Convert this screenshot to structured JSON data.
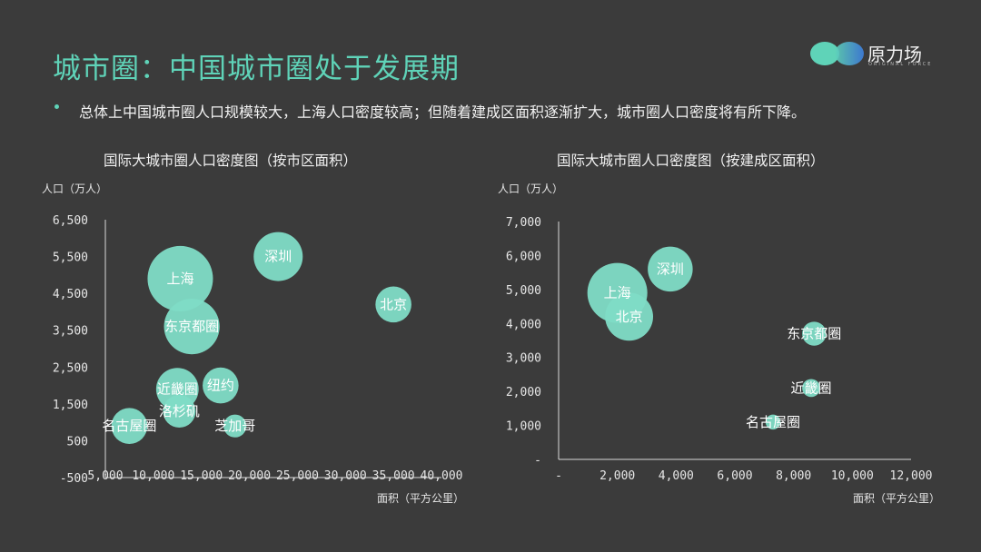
{
  "header": {
    "title": "城市圈：中国城市圈处于发展期",
    "logo_text": "原力场",
    "logo_sub": "ORIGINAL FORCE"
  },
  "bullet": "总体上中国城市圈人口规模较大，上海人口密度较高；但随着建成区面积逐渐扩大，城市圈人口密度将有所下降。",
  "colors": {
    "accent": "#5fd3b8",
    "bubble": "#80dcc6",
    "background": "#3b3b3b",
    "axis": "#d9d9d9"
  },
  "chart_data": [
    {
      "type": "bubble",
      "title": "国际大城市圈人口密度图（按市区面积）",
      "ylabel": "人口（万人）",
      "xlabel": "面积（平方公里）",
      "xlim": [
        5000,
        40000
      ],
      "ylim": [
        -500,
        6500
      ],
      "xticks": [
        "5,000",
        "10,000",
        "15,000",
        "20,000",
        "25,000",
        "30,000",
        "35,000",
        "40,000"
      ],
      "yticks": [
        "-500",
        "500",
        "1,500",
        "2,500",
        "3,500",
        "4,500",
        "5,500",
        "6,500"
      ],
      "points": [
        {
          "name": "上海",
          "x": 12800,
          "y": 4900,
          "size": 1.0
        },
        {
          "name": "深圳",
          "x": 23000,
          "y": 5500,
          "size": 0.75
        },
        {
          "name": "北京",
          "x": 35000,
          "y": 4200,
          "size": 0.55
        },
        {
          "name": "东京都圈",
          "x": 14000,
          "y": 3600,
          "size": 0.85
        },
        {
          "name": "纽约",
          "x": 17000,
          "y": 2000,
          "size": 0.55
        },
        {
          "name": "近畿圈",
          "x": 12500,
          "y": 1900,
          "size": 0.65
        },
        {
          "name": "洛杉矶",
          "x": 12700,
          "y": 1300,
          "size": 0.5
        },
        {
          "name": "名古屋圈",
          "x": 7500,
          "y": 900,
          "size": 0.55
        },
        {
          "name": "芝加哥",
          "x": 18500,
          "y": 900,
          "size": 0.35
        }
      ]
    },
    {
      "type": "bubble",
      "title": "国际大城市圈人口密度图（按建成区面积）",
      "ylabel": "人口（万人）",
      "xlabel": "面积（平方公里）",
      "xlim": [
        0,
        12000
      ],
      "ylim": [
        0,
        7000
      ],
      "xticks": [
        "-",
        "2,000",
        "4,000",
        "6,000",
        "8,000",
        "10,000",
        "12,000"
      ],
      "yticks": [
        "-",
        "1,000",
        "2,000",
        "3,000",
        "4,000",
        "5,000",
        "6,000",
        "7,000"
      ],
      "points": [
        {
          "name": "上海",
          "x": 2000,
          "y": 4900,
          "size": 1.0
        },
        {
          "name": "北京",
          "x": 2400,
          "y": 4200,
          "size": 0.8
        },
        {
          "name": "深圳",
          "x": 3800,
          "y": 5600,
          "size": 0.75
        },
        {
          "name": "东京都圈",
          "x": 8700,
          "y": 3700,
          "size": 0.4
        },
        {
          "name": "近畿圈",
          "x": 8600,
          "y": 2100,
          "size": 0.3
        },
        {
          "name": "名古屋圈",
          "x": 7300,
          "y": 1100,
          "size": 0.25
        }
      ]
    }
  ]
}
